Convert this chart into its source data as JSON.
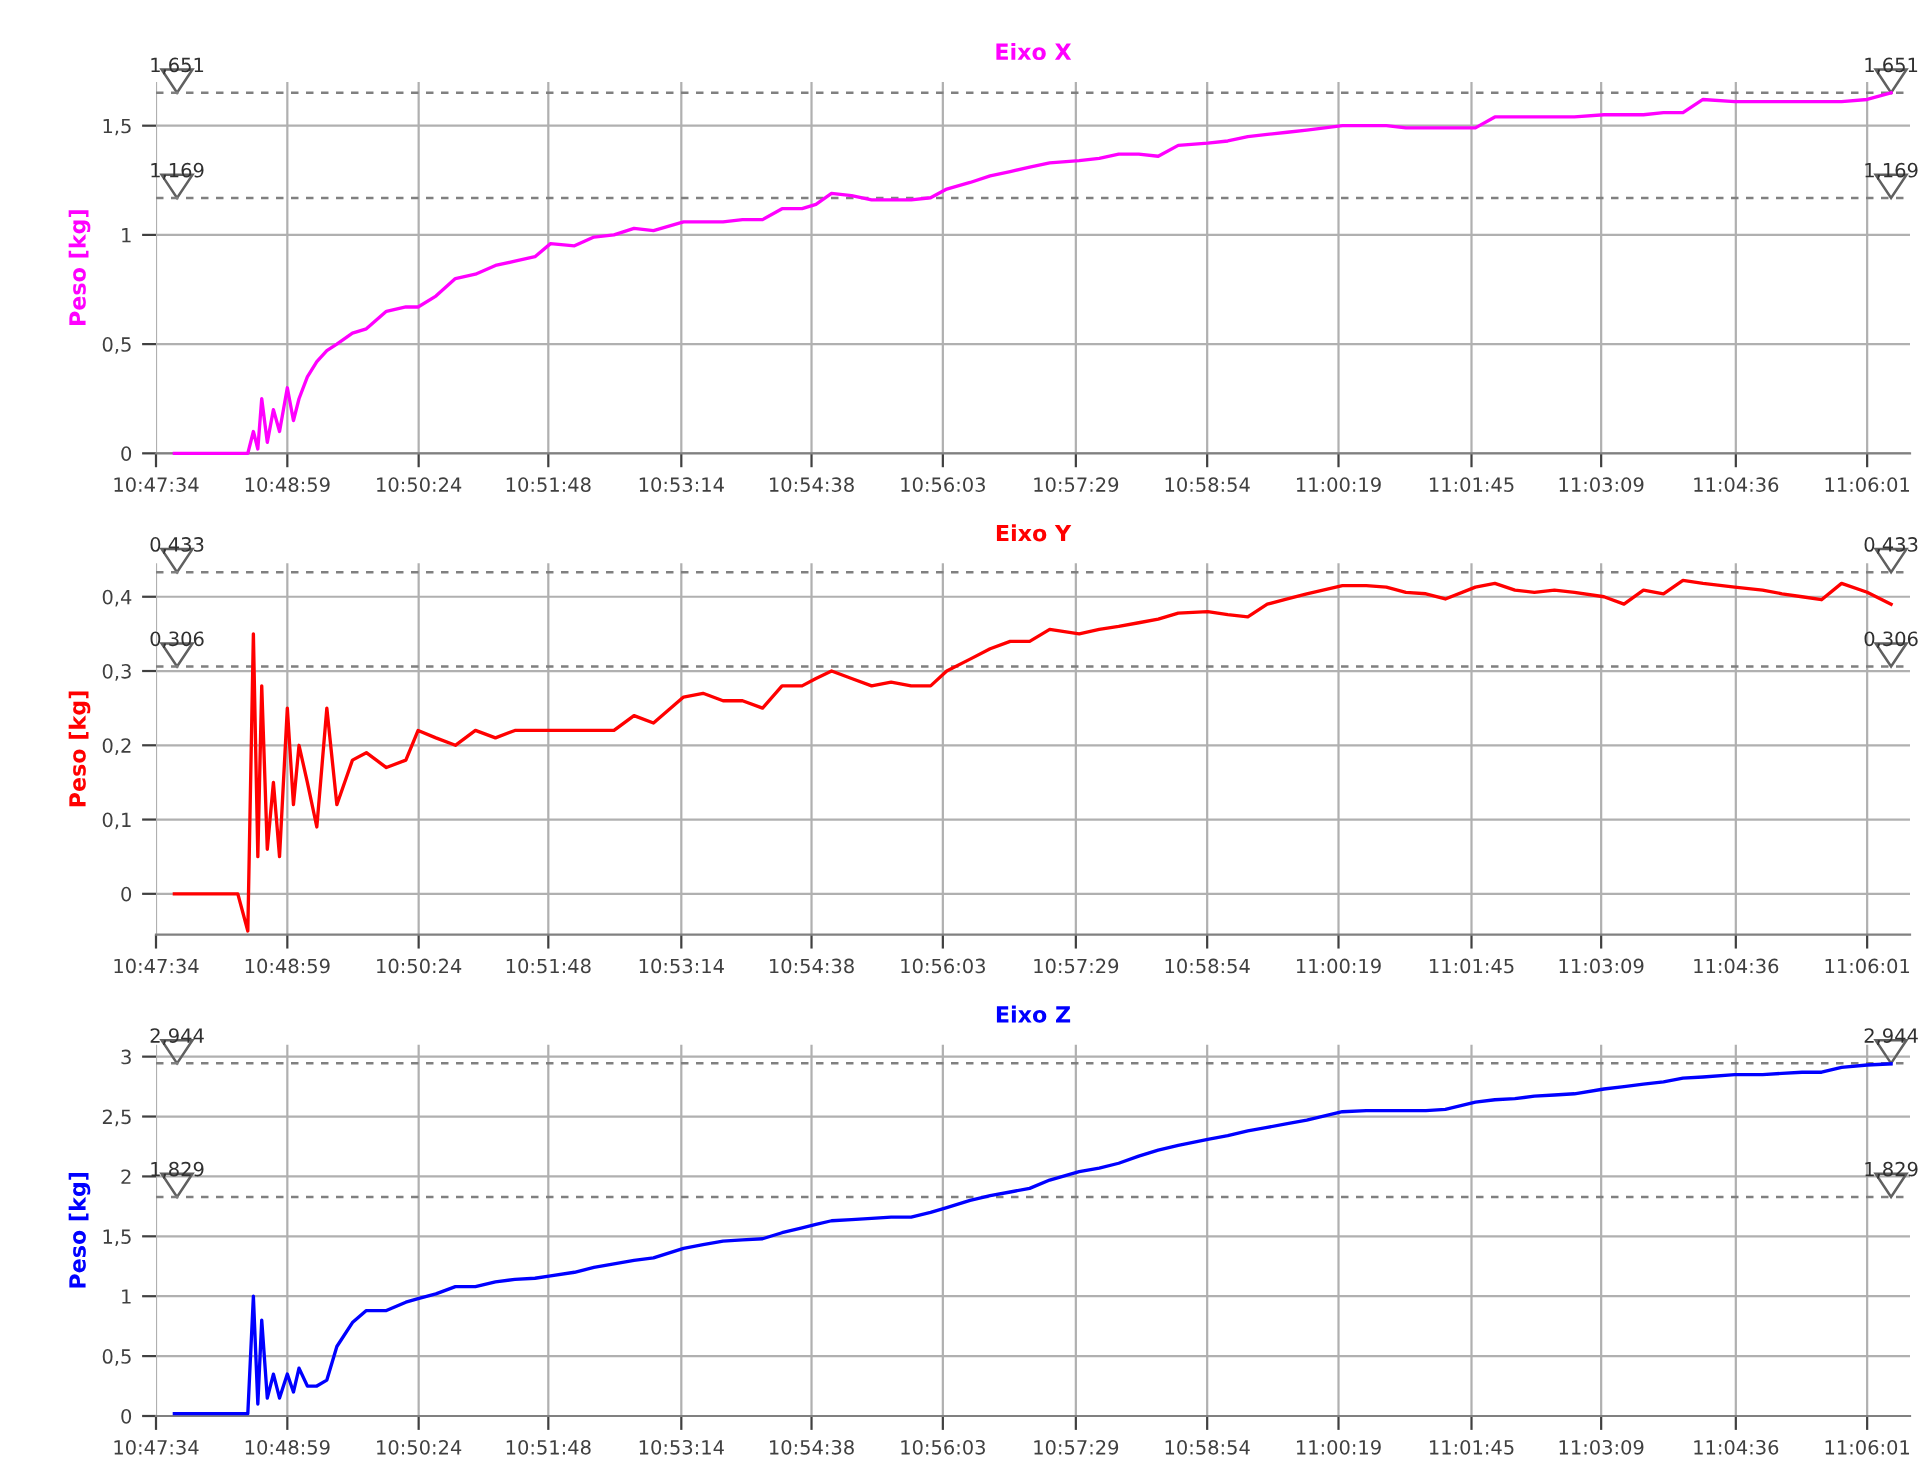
{
  "chart_data": [
    {
      "type": "line",
      "title": "Eixo X",
      "ylabel": "Peso [kg]",
      "grid": true,
      "x": [
        10.7961,
        10.8022,
        10.8075,
        10.8093,
        10.8103,
        10.8111,
        10.8118,
        10.8128,
        10.8139,
        10.815,
        10.8164,
        10.8175,
        10.8185,
        10.82,
        10.8217,
        10.8235,
        10.8253,
        10.8281,
        10.8306,
        10.8342,
        10.8377,
        10.8399,
        10.8431,
        10.8466,
        10.8502,
        10.8538,
        10.8573,
        10.8609,
        10.8637,
        10.868,
        10.8715,
        10.8751,
        10.8787,
        10.8822,
        10.8876,
        10.8911,
        10.8947,
        10.8982,
        10.9018,
        10.9053,
        10.9089,
        10.9114,
        10.9142,
        10.9178,
        10.9214,
        10.9249,
        10.9285,
        10.932,
        10.9349,
        10.9391,
        10.9427,
        10.9463,
        10.9498,
        10.9534,
        10.9587,
        10.9623,
        10.9658,
        10.9694,
        10.9729,
        10.9765,
        10.9818,
        10.9854,
        10.989,
        10.9925,
        10.9961,
        10.9996,
        11.006,
        11.0103,
        11.0139,
        11.0174,
        11.021,
        11.0245,
        11.0299,
        11.0334,
        11.037,
        11.0405,
        11.0441,
        11.0477,
        11.053,
        11.0566,
        11.0601,
        11.0637,
        11.0672,
        11.0708,
        11.0765,
        11.0815,
        11.085,
        11.0886,
        11.0921,
        11.0957,
        11.1003,
        11.1046
      ],
      "series": [
        {
          "color": "#ff00ff",
          "values": [
            0,
            0,
            0,
            0,
            0.1,
            0.02,
            0.25,
            0.05,
            0.2,
            0.1,
            0.3,
            0.15,
            0.25,
            0.35,
            0.42,
            0.47,
            0.5,
            0.55,
            0.57,
            0.65,
            0.67,
            0.67,
            0.72,
            0.8,
            0.82,
            0.86,
            0.88,
            0.9,
            0.96,
            0.95,
            0.99,
            1.0,
            1.03,
            1.02,
            1.06,
            1.06,
            1.06,
            1.07,
            1.07,
            1.12,
            1.12,
            1.14,
            1.19,
            1.18,
            1.16,
            1.16,
            1.16,
            1.17,
            1.21,
            1.24,
            1.27,
            1.29,
            1.31,
            1.33,
            1.34,
            1.35,
            1.37,
            1.37,
            1.36,
            1.41,
            1.42,
            1.43,
            1.45,
            1.46,
            1.47,
            1.48,
            1.5,
            1.5,
            1.5,
            1.49,
            1.49,
            1.49,
            1.49,
            1.54,
            1.54,
            1.54,
            1.54,
            1.54,
            1.55,
            1.55,
            1.55,
            1.56,
            1.56,
            1.62,
            1.61,
            1.61,
            1.61,
            1.61,
            1.61,
            1.61,
            1.62,
            1.65
          ]
        }
      ],
      "xlim": [
        10.7928,
        11.108
      ],
      "xticks": [
        {
          "value": 10.7928,
          "label": "10:47:34"
        },
        {
          "value": 10.8164,
          "label": "10:48:59"
        },
        {
          "value": 10.84,
          "label": "10:50:24"
        },
        {
          "value": 10.8633,
          "label": "10:51:48"
        },
        {
          "value": 10.8872,
          "label": "10:53:14"
        },
        {
          "value": 10.9106,
          "label": "10:54:38"
        },
        {
          "value": 10.9342,
          "label": "10:56:03"
        },
        {
          "value": 10.9581,
          "label": "10:57:29"
        },
        {
          "value": 10.9817,
          "label": "10:58:54"
        },
        {
          "value": 11.0053,
          "label": "11:00:19"
        },
        {
          "value": 11.0292,
          "label": "11:01:45"
        },
        {
          "value": 11.0525,
          "label": "11:03:09"
        },
        {
          "value": 11.0767,
          "label": "11:04:36"
        },
        {
          "value": 11.1003,
          "label": "11:06:01"
        }
      ],
      "ylim": [
        0,
        1.7
      ],
      "yticks": [
        0,
        {
          "value": 0.5,
          "label": "0,5"
        },
        1,
        {
          "value": 1.5,
          "label": "1,5"
        }
      ],
      "ref_lines": [
        {
          "axis": "y",
          "value": 1.651,
          "label": "1,651",
          "color": "#808080",
          "line_style": "dashed"
        },
        {
          "axis": "y",
          "value": 1.169,
          "label": "1,169",
          "color": "#808080",
          "line_style": "dashed"
        }
      ]
    },
    {
      "type": "line",
      "title": "Eixo Y",
      "ylabel": "Peso [kg]",
      "grid": true,
      "x": [
        10.7961,
        10.8022,
        10.8075,
        10.8093,
        10.8103,
        10.8111,
        10.8118,
        10.8128,
        10.8139,
        10.815,
        10.8164,
        10.8175,
        10.8185,
        10.82,
        10.8217,
        10.8235,
        10.8253,
        10.8281,
        10.8306,
        10.8342,
        10.8377,
        10.8399,
        10.8431,
        10.8466,
        10.8502,
        10.8538,
        10.8573,
        10.8609,
        10.8637,
        10.868,
        10.8715,
        10.8751,
        10.8787,
        10.8822,
        10.8876,
        10.8911,
        10.8947,
        10.8982,
        10.9018,
        10.9053,
        10.9089,
        10.9114,
        10.9142,
        10.9178,
        10.9214,
        10.9249,
        10.9285,
        10.932,
        10.9349,
        10.9391,
        10.9427,
        10.9463,
        10.9498,
        10.9534,
        10.9587,
        10.9623,
        10.9658,
        10.9694,
        10.9729,
        10.9765,
        10.9818,
        10.9854,
        10.989,
        10.9925,
        10.9961,
        10.9996,
        11.006,
        11.0103,
        11.0139,
        11.0174,
        11.021,
        11.0245,
        11.0299,
        11.0334,
        11.037,
        11.0405,
        11.0441,
        11.0477,
        11.053,
        11.0566,
        11.0601,
        11.0637,
        11.0672,
        11.0708,
        11.0765,
        11.0815,
        11.085,
        11.0886,
        11.0921,
        11.0957,
        11.1003,
        11.1046
      ],
      "series": [
        {
          "color": "#ff0000",
          "values": [
            0,
            0,
            0,
            -0.05,
            0.35,
            0.05,
            0.28,
            0.06,
            0.15,
            0.05,
            0.25,
            0.12,
            0.2,
            0.15,
            0.09,
            0.25,
            0.12,
            0.18,
            0.19,
            0.17,
            0.18,
            0.22,
            0.21,
            0.2,
            0.22,
            0.21,
            0.22,
            0.22,
            0.22,
            0.22,
            0.22,
            0.22,
            0.24,
            0.23,
            0.265,
            0.27,
            0.26,
            0.26,
            0.25,
            0.28,
            0.28,
            0.29,
            0.3,
            0.29,
            0.28,
            0.285,
            0.28,
            0.28,
            0.3,
            0.316,
            0.33,
            0.34,
            0.34,
            0.356,
            0.35,
            0.356,
            0.36,
            0.365,
            0.37,
            0.378,
            0.38,
            0.376,
            0.373,
            0.39,
            0.397,
            0.404,
            0.415,
            0.415,
            0.413,
            0.406,
            0.404,
            0.397,
            0.413,
            0.418,
            0.409,
            0.406,
            0.409,
            0.406,
            0.4,
            0.39,
            0.409,
            0.404,
            0.422,
            0.418,
            0.413,
            0.409,
            0.404,
            0.4,
            0.396,
            0.418,
            0.406,
            0.39
          ]
        }
      ],
      "xlim": [
        10.7928,
        11.108
      ],
      "xticks": [
        {
          "value": 10.7928,
          "label": "10:47:34"
        },
        {
          "value": 10.8164,
          "label": "10:48:59"
        },
        {
          "value": 10.84,
          "label": "10:50:24"
        },
        {
          "value": 10.8633,
          "label": "10:51:48"
        },
        {
          "value": 10.8872,
          "label": "10:53:14"
        },
        {
          "value": 10.9106,
          "label": "10:54:38"
        },
        {
          "value": 10.9342,
          "label": "10:56:03"
        },
        {
          "value": 10.9581,
          "label": "10:57:29"
        },
        {
          "value": 10.9817,
          "label": "10:58:54"
        },
        {
          "value": 11.0053,
          "label": "11:00:19"
        },
        {
          "value": 11.0292,
          "label": "11:01:45"
        },
        {
          "value": 11.0525,
          "label": "11:03:09"
        },
        {
          "value": 11.0767,
          "label": "11:04:36"
        },
        {
          "value": 11.1003,
          "label": "11:06:01"
        }
      ],
      "ylim": [
        -0.055,
        0.445
      ],
      "yticks": [
        0,
        {
          "value": 0.1,
          "label": "0,1"
        },
        {
          "value": 0.2,
          "label": "0,2"
        },
        {
          "value": 0.3,
          "label": "0,3"
        },
        {
          "value": 0.4,
          "label": "0,4"
        }
      ],
      "ref_lines": [
        {
          "axis": "y",
          "value": 0.433,
          "label": "0,433",
          "color": "#808080",
          "line_style": "dashed"
        },
        {
          "axis": "y",
          "value": 0.306,
          "label": "0,306",
          "color": "#808080",
          "line_style": "dashed"
        }
      ]
    },
    {
      "type": "line",
      "title": "Eixo Z",
      "ylabel": "Peso [kg]",
      "grid": true,
      "x": [
        10.7961,
        10.8022,
        10.8075,
        10.8093,
        10.8103,
        10.8111,
        10.8118,
        10.8128,
        10.8139,
        10.815,
        10.8164,
        10.8175,
        10.8185,
        10.82,
        10.8217,
        10.8235,
        10.8253,
        10.8281,
        10.8306,
        10.8342,
        10.8377,
        10.8399,
        10.8431,
        10.8466,
        10.8502,
        10.8538,
        10.8573,
        10.8609,
        10.8637,
        10.868,
        10.8715,
        10.8751,
        10.8787,
        10.8822,
        10.8876,
        10.8911,
        10.8947,
        10.8982,
        10.9018,
        10.9053,
        10.9089,
        10.9114,
        10.9142,
        10.9178,
        10.9214,
        10.9249,
        10.9285,
        10.932,
        10.9349,
        10.9391,
        10.9427,
        10.9463,
        10.9498,
        10.9534,
        10.9587,
        10.9623,
        10.9658,
        10.9694,
        10.9729,
        10.9765,
        10.9818,
        10.9854,
        10.989,
        10.9925,
        10.9961,
        10.9996,
        11.006,
        11.0103,
        11.0139,
        11.0174,
        11.021,
        11.0245,
        11.0299,
        11.0334,
        11.037,
        11.0405,
        11.0441,
        11.0477,
        11.053,
        11.0566,
        11.0601,
        11.0637,
        11.0672,
        11.0708,
        11.0765,
        11.0815,
        11.085,
        11.0886,
        11.0921,
        11.0957,
        11.1003,
        11.1046
      ],
      "series": [
        {
          "color": "#0000ff",
          "values": [
            0.02,
            0.02,
            0.02,
            0.02,
            1.0,
            0.1,
            0.8,
            0.15,
            0.35,
            0.15,
            0.35,
            0.2,
            0.4,
            0.25,
            0.25,
            0.3,
            0.58,
            0.78,
            0.88,
            0.88,
            0.95,
            0.98,
            1.02,
            1.08,
            1.08,
            1.12,
            1.14,
            1.15,
            1.17,
            1.2,
            1.24,
            1.27,
            1.3,
            1.32,
            1.4,
            1.43,
            1.46,
            1.47,
            1.48,
            1.53,
            1.57,
            1.6,
            1.63,
            1.64,
            1.65,
            1.66,
            1.66,
            1.7,
            1.74,
            1.8,
            1.84,
            1.87,
            1.9,
            1.97,
            2.04,
            2.07,
            2.11,
            2.17,
            2.22,
            2.26,
            2.31,
            2.34,
            2.38,
            2.41,
            2.44,
            2.47,
            2.54,
            2.55,
            2.55,
            2.55,
            2.55,
            2.56,
            2.62,
            2.64,
            2.65,
            2.67,
            2.68,
            2.69,
            2.73,
            2.75,
            2.77,
            2.79,
            2.82,
            2.83,
            2.85,
            2.85,
            2.86,
            2.87,
            2.87,
            2.91,
            2.93,
            2.94
          ]
        }
      ],
      "xlim": [
        10.7928,
        11.108
      ],
      "xticks": [
        {
          "value": 10.7928,
          "label": "10:47:34"
        },
        {
          "value": 10.8164,
          "label": "10:48:59"
        },
        {
          "value": 10.84,
          "label": "10:50:24"
        },
        {
          "value": 10.8633,
          "label": "10:51:48"
        },
        {
          "value": 10.8872,
          "label": "10:53:14"
        },
        {
          "value": 10.9106,
          "label": "10:54:38"
        },
        {
          "value": 10.9342,
          "label": "10:56:03"
        },
        {
          "value": 10.9581,
          "label": "10:57:29"
        },
        {
          "value": 10.9817,
          "label": "10:58:54"
        },
        {
          "value": 11.0053,
          "label": "11:00:19"
        },
        {
          "value": 11.0292,
          "label": "11:01:45"
        },
        {
          "value": 11.0525,
          "label": "11:03:09"
        },
        {
          "value": 11.0767,
          "label": "11:04:36"
        },
        {
          "value": 11.1003,
          "label": "11:06:01"
        }
      ],
      "ylim": [
        0,
        3.1
      ],
      "yticks": [
        0,
        {
          "value": 0.5,
          "label": "0,5"
        },
        1,
        {
          "value": 1.5,
          "label": "1,5"
        },
        2,
        {
          "value": 2.5,
          "label": "2,5"
        },
        3
      ],
      "ref_lines": [
        {
          "axis": "y",
          "value": 2.944,
          "label": "2,944",
          "color": "#808080",
          "line_style": "dashed"
        },
        {
          "axis": "y",
          "value": 1.829,
          "label": "1,829",
          "color": "#808080",
          "line_style": "dashed"
        }
      ]
    }
  ]
}
